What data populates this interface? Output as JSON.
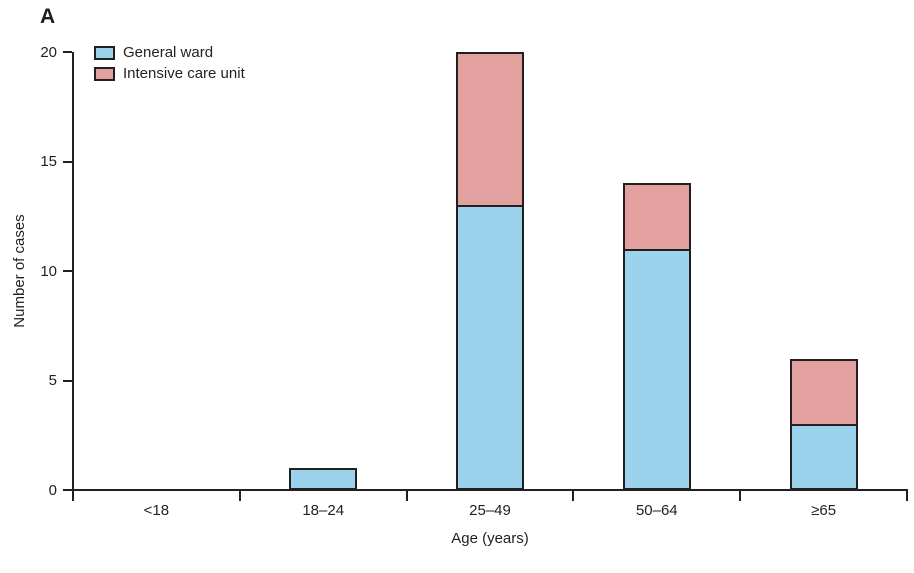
{
  "panel_label": "A",
  "chart_data": {
    "type": "bar",
    "stacked": true,
    "categories": [
      "<18",
      "18–24",
      "25–49",
      "50–64",
      "≥65"
    ],
    "series": [
      {
        "name": "General ward",
        "color": "#9CD3EC",
        "values": [
          0,
          1,
          13,
          11,
          3
        ]
      },
      {
        "name": "Intensive care unit",
        "color": "#E2A09E",
        "values": [
          0,
          0,
          7,
          3,
          3
        ]
      }
    ],
    "totals": [
      0,
      1,
      20,
      14,
      6
    ],
    "title": "",
    "xlabel": "Age (years)",
    "ylabel": "Number of cases",
    "ylim": [
      0,
      20
    ],
    "yticks": [
      0,
      5,
      10,
      15,
      20
    ],
    "legend_position": "top-left",
    "grid": false,
    "colors": {
      "axis": "#231F20",
      "bar_border": "#231F20",
      "text": "#231F20",
      "background": "#ffffff"
    }
  }
}
